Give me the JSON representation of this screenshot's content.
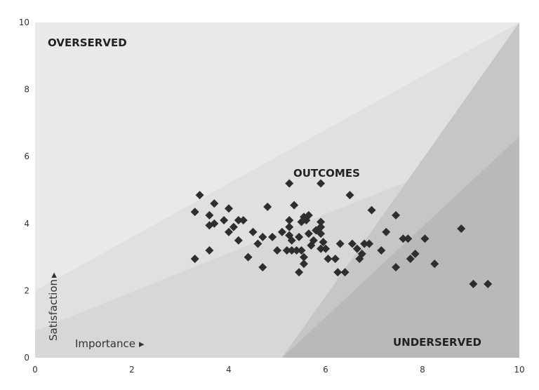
{
  "chart_data": {
    "type": "scatter",
    "title": "",
    "xlabel": "Importance",
    "ylabel": "Satisfaction",
    "xlim": [
      0,
      10
    ],
    "ylim": [
      0,
      10
    ],
    "x_ticks": [
      "0",
      "2",
      "4",
      "6",
      "8",
      "10"
    ],
    "y_ticks": [
      "0",
      "2",
      "4",
      "6",
      "8",
      "10"
    ],
    "grid": false,
    "legend": "none",
    "region_labels": {
      "overserved": "OVERSERVED",
      "outcomes": "OUTCOMES",
      "underserved": "UNDERSERVED"
    },
    "axis_hint_arrow": "▸",
    "marker": "diamond",
    "colors": {
      "background": "#e9e9e9",
      "band_upper": "#e0e0e0",
      "band_lower": "#d7d7d7",
      "underserved": "#b9b9b9",
      "underserved_light": "#c6c6c6",
      "marker": "#2e2e2e"
    },
    "points": [
      {
        "x": 3.3,
        "y": 4.35
      },
      {
        "x": 3.4,
        "y": 4.85
      },
      {
        "x": 3.6,
        "y": 4.25
      },
      {
        "x": 3.7,
        "y": 4.6
      },
      {
        "x": 3.6,
        "y": 3.95
      },
      {
        "x": 3.7,
        "y": 4.0
      },
      {
        "x": 3.3,
        "y": 2.95
      },
      {
        "x": 3.6,
        "y": 3.2
      },
      {
        "x": 3.9,
        "y": 4.1
      },
      {
        "x": 4.0,
        "y": 4.45
      },
      {
        "x": 4.0,
        "y": 3.75
      },
      {
        "x": 4.1,
        "y": 3.9
      },
      {
        "x": 4.2,
        "y": 4.1
      },
      {
        "x": 4.3,
        "y": 4.1
      },
      {
        "x": 4.2,
        "y": 3.5
      },
      {
        "x": 4.4,
        "y": 3.0
      },
      {
        "x": 4.5,
        "y": 3.75
      },
      {
        "x": 4.6,
        "y": 3.4
      },
      {
        "x": 4.7,
        "y": 3.6
      },
      {
        "x": 4.7,
        "y": 2.7
      },
      {
        "x": 4.8,
        "y": 4.5
      },
      {
        "x": 4.9,
        "y": 3.6
      },
      {
        "x": 5.0,
        "y": 3.2
      },
      {
        "x": 5.1,
        "y": 3.75
      },
      {
        "x": 5.2,
        "y": 3.2
      },
      {
        "x": 5.25,
        "y": 5.2
      },
      {
        "x": 5.25,
        "y": 4.1
      },
      {
        "x": 5.25,
        "y": 3.9
      },
      {
        "x": 5.25,
        "y": 3.65
      },
      {
        "x": 5.3,
        "y": 3.2
      },
      {
        "x": 5.3,
        "y": 3.5
      },
      {
        "x": 5.35,
        "y": 4.55
      },
      {
        "x": 5.4,
        "y": 3.2
      },
      {
        "x": 5.45,
        "y": 3.6
      },
      {
        "x": 5.45,
        "y": 2.55
      },
      {
        "x": 5.5,
        "y": 4.05
      },
      {
        "x": 5.5,
        "y": 3.2
      },
      {
        "x": 5.55,
        "y": 4.2
      },
      {
        "x": 5.55,
        "y": 3.0
      },
      {
        "x": 5.55,
        "y": 2.8
      },
      {
        "x": 5.6,
        "y": 4.1
      },
      {
        "x": 5.65,
        "y": 4.25
      },
      {
        "x": 5.65,
        "y": 3.7
      },
      {
        "x": 5.7,
        "y": 3.35
      },
      {
        "x": 5.75,
        "y": 3.5
      },
      {
        "x": 5.8,
        "y": 3.8
      },
      {
        "x": 5.9,
        "y": 4.05
      },
      {
        "x": 5.9,
        "y": 3.9
      },
      {
        "x": 5.9,
        "y": 3.7
      },
      {
        "x": 5.9,
        "y": 3.25
      },
      {
        "x": 5.9,
        "y": 5.2
      },
      {
        "x": 5.95,
        "y": 3.45
      },
      {
        "x": 6.0,
        "y": 3.25
      },
      {
        "x": 6.05,
        "y": 2.95
      },
      {
        "x": 6.2,
        "y": 2.95
      },
      {
        "x": 6.25,
        "y": 2.55
      },
      {
        "x": 6.3,
        "y": 3.4
      },
      {
        "x": 6.4,
        "y": 2.55
      },
      {
        "x": 6.5,
        "y": 4.85
      },
      {
        "x": 6.55,
        "y": 3.4
      },
      {
        "x": 6.65,
        "y": 3.25
      },
      {
        "x": 6.7,
        "y": 2.95
      },
      {
        "x": 6.75,
        "y": 3.1
      },
      {
        "x": 6.8,
        "y": 3.4
      },
      {
        "x": 6.9,
        "y": 3.4
      },
      {
        "x": 6.95,
        "y": 4.4
      },
      {
        "x": 7.15,
        "y": 3.2
      },
      {
        "x": 7.25,
        "y": 3.75
      },
      {
        "x": 7.45,
        "y": 4.25
      },
      {
        "x": 7.45,
        "y": 2.7
      },
      {
        "x": 7.6,
        "y": 3.55
      },
      {
        "x": 7.7,
        "y": 3.55
      },
      {
        "x": 7.75,
        "y": 2.95
      },
      {
        "x": 7.85,
        "y": 3.1
      },
      {
        "x": 8.05,
        "y": 3.55
      },
      {
        "x": 8.25,
        "y": 2.8
      },
      {
        "x": 8.8,
        "y": 3.85
      },
      {
        "x": 9.05,
        "y": 2.2
      },
      {
        "x": 9.35,
        "y": 2.2
      }
    ]
  }
}
